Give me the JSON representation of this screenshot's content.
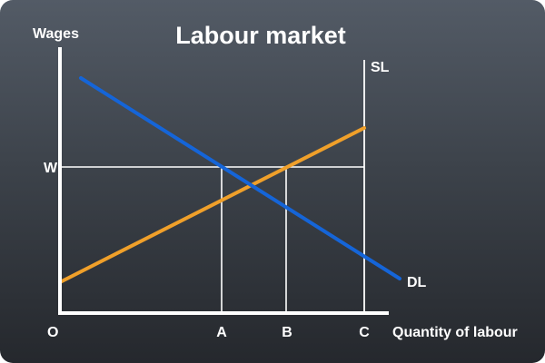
{
  "title": "Labour market",
  "axes": {
    "y_label": "Wages",
    "x_label": "Quantity of labour",
    "origin_label": "O"
  },
  "wage_label": "W",
  "x_ticks": [
    "A",
    "B",
    "C"
  ],
  "curves": {
    "demand": {
      "label": "DL",
      "color": "#1565d8"
    },
    "supply_fixed": {
      "label": "SL",
      "color": "#ffffff"
    },
    "supply_upward": {
      "label": "",
      "color": "#f0a02a"
    }
  },
  "colors": {
    "background_top": "#535b66",
    "background_bottom": "#25282d",
    "axis": "#ffffff"
  }
}
